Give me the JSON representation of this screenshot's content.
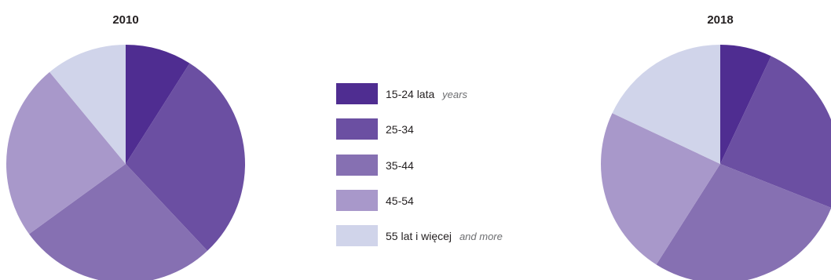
{
  "chart_data": [
    {
      "type": "pie",
      "title": "2010",
      "categories": [
        "15-24",
        "25-34",
        "35-44",
        "45-54",
        "55+"
      ],
      "values": [
        9,
        29,
        27,
        24,
        11
      ]
    },
    {
      "type": "pie",
      "title": "2018",
      "categories": [
        "15-24",
        "25-34",
        "35-44",
        "45-54",
        "55+"
      ],
      "values": [
        7,
        24,
        28,
        23,
        18
      ]
    }
  ],
  "legend": {
    "position": "center",
    "items": [
      {
        "label": "15-24 lata",
        "label_en": "years",
        "color": "#4f2d91"
      },
      {
        "label": "25-34",
        "label_en": "",
        "color": "#6b4fa2"
      },
      {
        "label": "35-44",
        "label_en": "",
        "color": "#8670b2"
      },
      {
        "label": "45-54",
        "label_en": "",
        "color": "#a898ca"
      },
      {
        "label": "55 lat i więcej",
        "label_en": "and more",
        "color": "#d0d4ea"
      }
    ]
  }
}
